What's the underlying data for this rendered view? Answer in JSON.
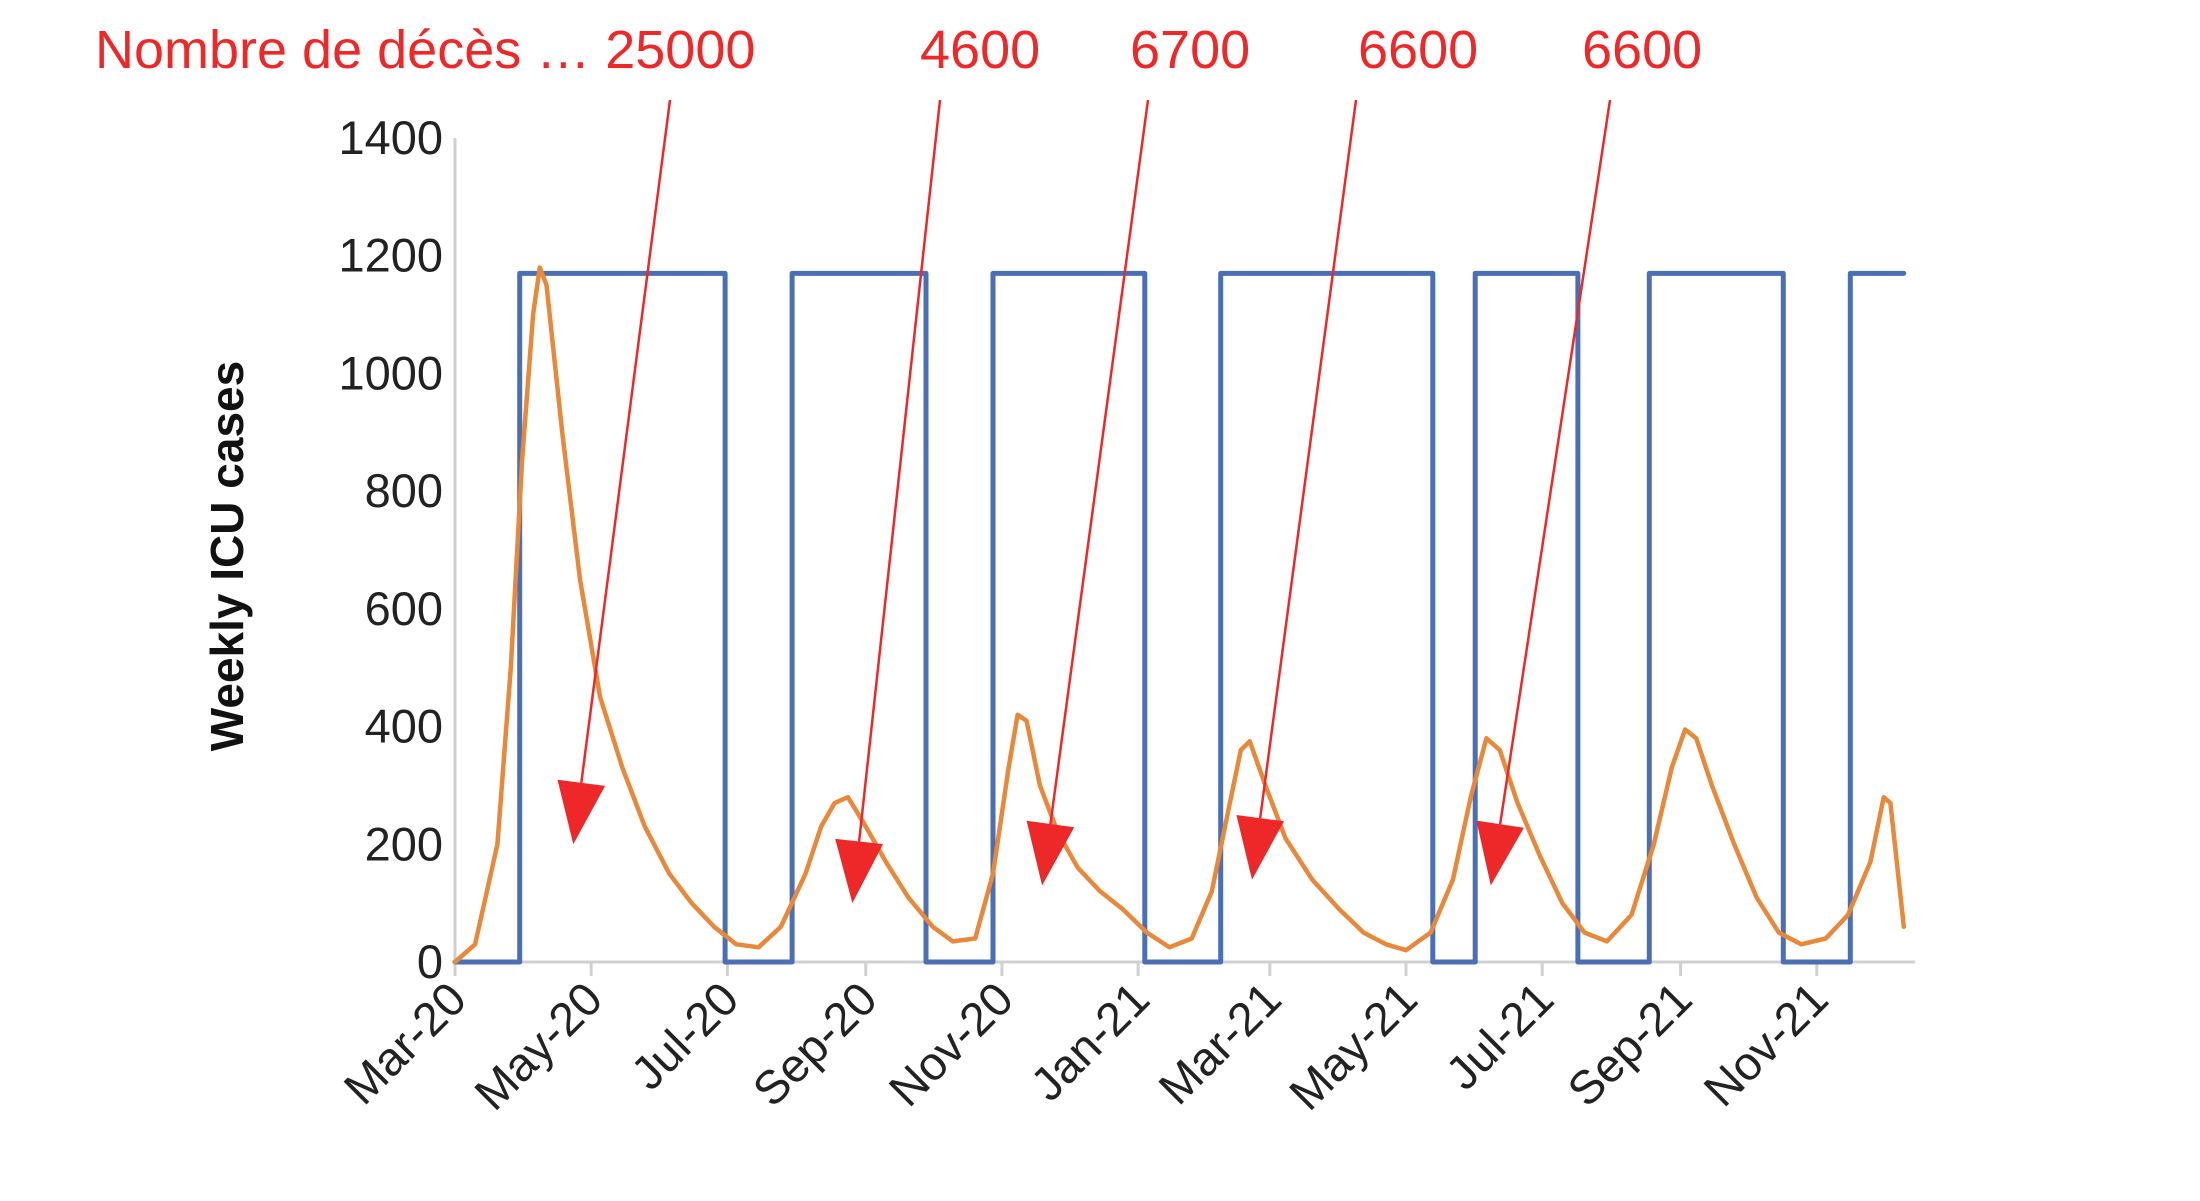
{
  "chart_data": {
    "type": "line",
    "title": "",
    "xlabel": "",
    "ylabel": "Weekly ICU cases",
    "ylim": [
      0,
      1400
    ],
    "yticks": [
      0,
      200,
      400,
      600,
      800,
      1000,
      1200,
      1400
    ],
    "x_axis": {
      "unit": "date",
      "start": "2020-03-01",
      "end": "2021-12-15",
      "tick_dates": [
        "2020-03-01",
        "2020-05-01",
        "2020-07-01",
        "2020-09-01",
        "2020-11-01",
        "2021-01-01",
        "2021-03-01",
        "2021-05-01",
        "2021-07-01",
        "2021-09-01",
        "2021-11-01"
      ],
      "tick_labels": [
        "Mar-20",
        "May-20",
        "Jul-20",
        "Sep-20",
        "Nov-20",
        "Jan-21",
        "Mar-21",
        "May-21",
        "Jul-21",
        "Sep-21",
        "Nov-21"
      ]
    },
    "grid": false,
    "series": [
      {
        "color": "#4a6fb5",
        "style": "step",
        "values_note": "",
        "points": [
          [
            "2020-03-01",
            0
          ],
          [
            "2020-03-30",
            0
          ],
          [
            "2020-03-30",
            1170
          ],
          [
            "2020-06-30",
            1170
          ],
          [
            "2020-06-30",
            0
          ],
          [
            "2020-07-30",
            0
          ],
          [
            "2020-07-30",
            1170
          ],
          [
            "2020-09-28",
            1170
          ],
          [
            "2020-09-28",
            0
          ],
          [
            "2020-10-28",
            0
          ],
          [
            "2020-10-28",
            1170
          ],
          [
            "2021-01-04",
            1170
          ],
          [
            "2021-01-04",
            0
          ],
          [
            "2021-02-07",
            0
          ],
          [
            "2021-02-07",
            1170
          ],
          [
            "2021-05-13",
            1170
          ],
          [
            "2021-05-13",
            0
          ],
          [
            "2021-06-01",
            0
          ],
          [
            "2021-06-01",
            1170
          ],
          [
            "2021-07-17",
            1170
          ],
          [
            "2021-07-17",
            0
          ],
          [
            "2021-08-18",
            0
          ],
          [
            "2021-08-18",
            1170
          ],
          [
            "2021-10-17",
            1170
          ],
          [
            "2021-10-17",
            0
          ],
          [
            "2021-11-16",
            0
          ],
          [
            "2021-11-16",
            1170
          ],
          [
            "2021-12-10",
            1170
          ]
        ]
      },
      {
        "color": "#e8883a",
        "style": "line",
        "points": [
          [
            "2020-03-01",
            0
          ],
          [
            "2020-03-10",
            30
          ],
          [
            "2020-03-20",
            200
          ],
          [
            "2020-03-26",
            500
          ],
          [
            "2020-03-31",
            850
          ],
          [
            "2020-04-05",
            1100
          ],
          [
            "2020-04-08",
            1180
          ],
          [
            "2020-04-11",
            1150
          ],
          [
            "2020-04-18",
            900
          ],
          [
            "2020-04-26",
            650
          ],
          [
            "2020-05-05",
            450
          ],
          [
            "2020-05-15",
            330
          ],
          [
            "2020-05-25",
            230
          ],
          [
            "2020-06-05",
            150
          ],
          [
            "2020-06-15",
            100
          ],
          [
            "2020-06-25",
            60
          ],
          [
            "2020-07-05",
            30
          ],
          [
            "2020-07-15",
            25
          ],
          [
            "2020-07-25",
            60
          ],
          [
            "2020-08-05",
            150
          ],
          [
            "2020-08-12",
            230
          ],
          [
            "2020-08-18",
            270
          ],
          [
            "2020-08-24",
            280
          ],
          [
            "2020-09-01",
            230
          ],
          [
            "2020-09-10",
            170
          ],
          [
            "2020-09-20",
            110
          ],
          [
            "2020-10-01",
            60
          ],
          [
            "2020-10-10",
            35
          ],
          [
            "2020-10-20",
            40
          ],
          [
            "2020-10-28",
            150
          ],
          [
            "2020-11-04",
            330
          ],
          [
            "2020-11-08",
            420
          ],
          [
            "2020-11-12",
            410
          ],
          [
            "2020-11-18",
            300
          ],
          [
            "2020-11-26",
            220
          ],
          [
            "2020-12-05",
            160
          ],
          [
            "2020-12-15",
            120
          ],
          [
            "2020-12-25",
            90
          ],
          [
            "2021-01-05",
            50
          ],
          [
            "2021-01-15",
            25
          ],
          [
            "2021-01-25",
            40
          ],
          [
            "2021-02-03",
            120
          ],
          [
            "2021-02-10",
            250
          ],
          [
            "2021-02-16",
            360
          ],
          [
            "2021-02-20",
            375
          ],
          [
            "2021-02-27",
            300
          ],
          [
            "2021-03-08",
            210
          ],
          [
            "2021-03-20",
            140
          ],
          [
            "2021-04-01",
            90
          ],
          [
            "2021-04-12",
            50
          ],
          [
            "2021-04-22",
            30
          ],
          [
            "2021-05-01",
            20
          ],
          [
            "2021-05-12",
            50
          ],
          [
            "2021-05-22",
            140
          ],
          [
            "2021-05-30",
            280
          ],
          [
            "2021-06-06",
            380
          ],
          [
            "2021-06-12",
            360
          ],
          [
            "2021-06-20",
            270
          ],
          [
            "2021-06-30",
            180
          ],
          [
            "2021-07-10",
            100
          ],
          [
            "2021-07-20",
            50
          ],
          [
            "2021-07-30",
            35
          ],
          [
            "2021-08-10",
            80
          ],
          [
            "2021-08-20",
            200
          ],
          [
            "2021-08-28",
            330
          ],
          [
            "2021-09-03",
            395
          ],
          [
            "2021-09-08",
            380
          ],
          [
            "2021-09-15",
            300
          ],
          [
            "2021-09-25",
            200
          ],
          [
            "2021-10-05",
            110
          ],
          [
            "2021-10-15",
            50
          ],
          [
            "2021-10-25",
            30
          ],
          [
            "2021-11-05",
            40
          ],
          [
            "2021-11-15",
            80
          ],
          [
            "2021-11-25",
            170
          ],
          [
            "2021-12-01",
            280
          ],
          [
            "2021-12-04",
            270
          ],
          [
            "2021-12-10",
            60
          ]
        ]
      }
    ],
    "annotations": [
      {
        "text": "Nombre de décès … 25000",
        "arrow_to": [
          "2020-04-23",
          200
        ]
      },
      {
        "text": "4600",
        "arrow_to": [
          "2020-08-26",
          100
        ]
      },
      {
        "text": "6700",
        "arrow_to": [
          "2020-11-19",
          130
        ]
      },
      {
        "text": "6600",
        "arrow_to": [
          "2021-02-21",
          140
        ]
      },
      {
        "text": "6600",
        "arrow_to": [
          "2021-06-08",
          130
        ]
      }
    ],
    "annotation_color": "#ee2828"
  }
}
